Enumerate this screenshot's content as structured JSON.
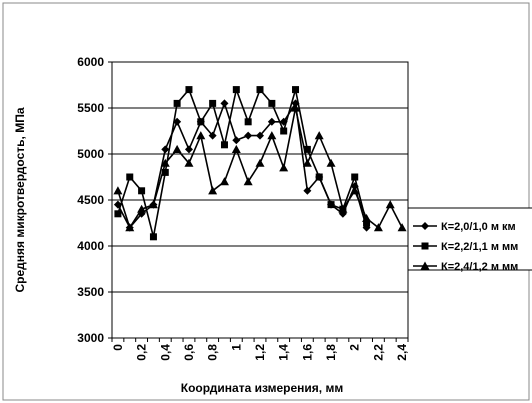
{
  "chart_data": {
    "type": "line",
    "title": "",
    "xlabel": "Координата измерения, мм",
    "ylabel": "Средняя микротвердость, МПа",
    "ylim": [
      3000,
      6000
    ],
    "yticks": [
      3000,
      3500,
      4000,
      4500,
      5000,
      5500,
      6000
    ],
    "xlim": [
      0,
      2.4
    ],
    "xtick_labels": [
      "0",
      "0,2",
      "0,4",
      "0,6",
      "0,8",
      "1",
      "1,2",
      "1,4",
      "1,6",
      "1,8",
      "2",
      "2,2",
      "2,4"
    ],
    "grid": "horizontal",
    "legend_position": "right",
    "x": [
      0,
      0.1,
      0.2,
      0.3,
      0.4,
      0.5,
      0.6,
      0.7,
      0.8,
      0.9,
      1.0,
      1.1,
      1.2,
      1.3,
      1.4,
      1.5,
      1.6,
      1.7,
      1.8,
      1.9,
      2.0,
      2.1,
      2.2,
      2.3,
      2.4
    ],
    "series": [
      {
        "name": "К=2,0/1,0 м км",
        "marker": "diamond",
        "values": [
          4450,
          4200,
          4350,
          4450,
          5050,
          5350,
          5050,
          5350,
          5200,
          5550,
          5150,
          5200,
          5200,
          5350,
          5350,
          5550,
          4600,
          4750,
          4450,
          4350,
          4650,
          4200,
          null,
          null,
          null
        ]
      },
      {
        "name": "К=2,2/1,1 м мм",
        "marker": "square",
        "values": [
          4350,
          4750,
          4600,
          4100,
          4800,
          5550,
          5700,
          5350,
          5550,
          5100,
          5700,
          5350,
          5700,
          5550,
          5250,
          5700,
          5050,
          4750,
          4450,
          4400,
          4750,
          4250,
          null,
          null,
          null
        ]
      },
      {
        "name": "К=2,4/1,2 м мм",
        "marker": "triangle",
        "values": [
          4600,
          4200,
          4400,
          4450,
          4900,
          5050,
          4900,
          5200,
          4600,
          4700,
          5050,
          4700,
          4900,
          5200,
          4850,
          5500,
          4900,
          5200,
          4900,
          4400,
          4600,
          4300,
          4200,
          4450,
          4200
        ]
      }
    ]
  }
}
